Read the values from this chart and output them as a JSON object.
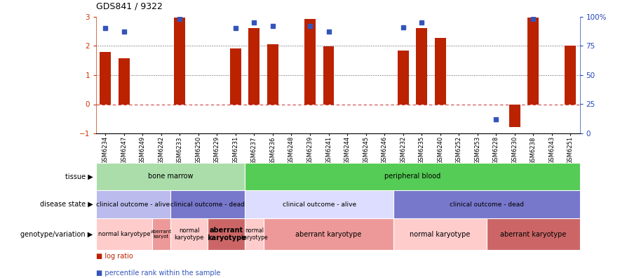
{
  "title": "GDS841 / 9322",
  "samples": [
    "GSM6234",
    "GSM6247",
    "GSM6249",
    "GSM6242",
    "GSM6233",
    "GSM6250",
    "GSM6229",
    "GSM6231",
    "GSM6237",
    "GSM6236",
    "GSM6248",
    "GSM6239",
    "GSM6241",
    "GSM6244",
    "GSM6245",
    "GSM6246",
    "GSM6232",
    "GSM6235",
    "GSM6240",
    "GSM6252",
    "GSM6253",
    "GSM6228",
    "GSM6230",
    "GSM6238",
    "GSM6243",
    "GSM6251"
  ],
  "log_ratio": [
    1.78,
    1.58,
    0,
    0,
    2.97,
    0,
    0,
    1.9,
    2.62,
    2.05,
    0,
    2.92,
    1.98,
    0,
    0,
    0,
    1.85,
    2.62,
    2.28,
    0,
    0,
    0,
    -0.78,
    2.97,
    0,
    2.02
  ],
  "percentile_pct": [
    90,
    87,
    null,
    null,
    98,
    null,
    null,
    90,
    95,
    92,
    null,
    92,
    87,
    null,
    null,
    null,
    91,
    95,
    null,
    null,
    null,
    12,
    null,
    98,
    null,
    null
  ],
  "ylim_left": [
    -1,
    3
  ],
  "ylim_right": [
    0,
    100
  ],
  "yticks_left": [
    -1,
    0,
    1,
    2,
    3
  ],
  "yticks_right": [
    0,
    25,
    50,
    75,
    100
  ],
  "bar_color": "#bb2200",
  "dot_color": "#3355bb",
  "left_tick_color": "#cc3300",
  "right_tick_color": "#2244bb",
  "zero_line_color": "#cc4444",
  "dotted_line_color": "#555555",
  "tissue_groups": [
    {
      "label": "bone marrow",
      "start": 0,
      "end": 8,
      "color": "#aaddaa"
    },
    {
      "label": "peripheral blood",
      "start": 8,
      "end": 26,
      "color": "#55cc55"
    }
  ],
  "disease_groups": [
    {
      "label": "clinical outcome - alive",
      "start": 0,
      "end": 4,
      "color": "#bbbbee"
    },
    {
      "label": "clinical outcome - dead",
      "start": 4,
      "end": 8,
      "color": "#7777cc"
    },
    {
      "label": "clinical outcome - alive",
      "start": 8,
      "end": 16,
      "color": "#ddddff"
    },
    {
      "label": "clinical outcome - dead",
      "start": 16,
      "end": 26,
      "color": "#7777cc"
    }
  ],
  "genotype_groups": [
    {
      "label": "normal karyotype",
      "start": 0,
      "end": 3,
      "color": "#ffcccc",
      "fontsize": 6,
      "bold": false
    },
    {
      "label": "aberrant\nkaryot",
      "start": 3,
      "end": 4,
      "color": "#ee9999",
      "fontsize": 5,
      "bold": false
    },
    {
      "label": "normal\nkaryotype",
      "start": 4,
      "end": 6,
      "color": "#ffcccc",
      "fontsize": 6,
      "bold": false
    },
    {
      "label": "aberrant\nkaryotype",
      "start": 6,
      "end": 8,
      "color": "#cc6666",
      "fontsize": 7,
      "bold": true
    },
    {
      "label": "normal\nkaryotype",
      "start": 8,
      "end": 9,
      "color": "#ffcccc",
      "fontsize": 5.5,
      "bold": false
    },
    {
      "label": "aberrant karyotype",
      "start": 9,
      "end": 16,
      "color": "#ee9999",
      "fontsize": 7,
      "bold": false
    },
    {
      "label": "normal karyotype",
      "start": 16,
      "end": 21,
      "color": "#ffcccc",
      "fontsize": 7,
      "bold": false
    },
    {
      "label": "aberrant karyotype",
      "start": 21,
      "end": 26,
      "color": "#cc6666",
      "fontsize": 7,
      "bold": false
    }
  ],
  "fig_width": 8.84,
  "fig_height": 3.96,
  "dpi": 100
}
